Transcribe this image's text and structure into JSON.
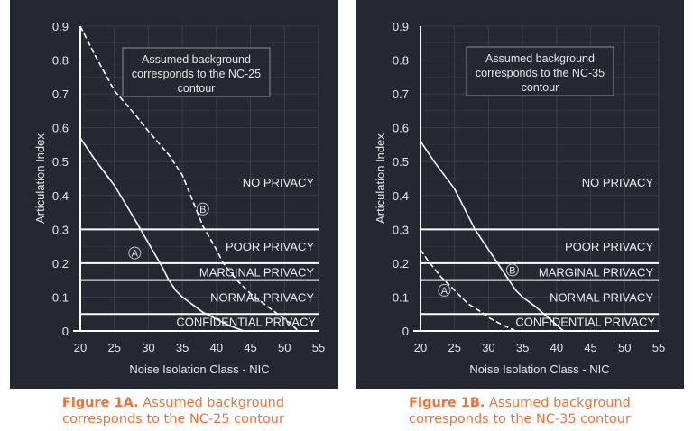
{
  "colors": {
    "background": "#242830",
    "lines": "#ffffff",
    "grid": "#3a3f49",
    "caption": "#e8743b"
  },
  "chart_data": [
    {
      "type": "line",
      "xlabel": "Noise Isolation Class - NIC",
      "ylabel": "Articulation Index",
      "xlim": [
        20,
        55
      ],
      "ylim": [
        0,
        0.9
      ],
      "xticks": [
        "20",
        "25",
        "30",
        "35",
        "40",
        "45",
        "50",
        "55"
      ],
      "yticks": [
        "0",
        "0.1",
        "0.2",
        "0.3",
        "0.4",
        "0.5",
        "0.6",
        "0.7",
        "0.8",
        "0.9"
      ],
      "grid": true,
      "annotation": [
        "Assumed background",
        "corresponds to the NC-25",
        "contour"
      ],
      "thresholds": [
        0.3,
        0.2,
        0.15,
        0.05,
        0
      ],
      "zones": [
        "NO PRIVACY",
        "POOR PRIVACY",
        "MARGINAL PRIVACY",
        "NORMAL PRIVACY",
        "CONFIDENTIAL PRIVACY"
      ],
      "series": [
        {
          "name": "A",
          "style": "solid",
          "x": [
            20,
            22,
            25,
            28,
            30,
            32,
            33,
            34,
            35,
            37,
            38,
            40,
            42,
            44
          ],
          "y": [
            0.57,
            0.51,
            0.43,
            0.33,
            0.26,
            0.19,
            0.15,
            0.12,
            0.1,
            0.07,
            0.055,
            0.035,
            0.015,
            0
          ]
        },
        {
          "name": "B",
          "style": "dashed",
          "x": [
            20,
            22,
            25,
            28,
            30,
            33,
            35,
            38,
            40,
            41,
            43,
            45,
            47,
            49,
            51,
            52
          ],
          "y": [
            0.9,
            0.82,
            0.71,
            0.64,
            0.59,
            0.52,
            0.46,
            0.31,
            0.24,
            0.2,
            0.15,
            0.11,
            0.08,
            0.05,
            0.02,
            0
          ]
        }
      ],
      "caption_bold": "Figure 1A.",
      "caption_line1": " Assumed background",
      "caption_line2": "corresponds to the NC-25 contour"
    },
    {
      "type": "line",
      "xlabel": "Noise Isolation Class - NIC",
      "ylabel": "Articulation Index",
      "xlim": [
        20,
        55
      ],
      "ylim": [
        0,
        0.9
      ],
      "xticks": [
        "20",
        "25",
        "30",
        "35",
        "40",
        "45",
        "50",
        "55"
      ],
      "yticks": [
        "0",
        "0.1",
        "0.2",
        "0.3",
        "0.4",
        "0.5",
        "0.6",
        "0.7",
        "0.8",
        "0.9"
      ],
      "grid": true,
      "annotation": [
        "Assumed background",
        "corresponds to the NC-35",
        "contour"
      ],
      "thresholds": [
        0.3,
        0.2,
        0.15,
        0.05,
        0
      ],
      "zones": [
        "NO PRIVACY",
        "POOR PRIVACY",
        "MARGINAL PRIVACY",
        "NORMAL PRIVACY",
        "CONFIDENTIAL PRIVACY"
      ],
      "series": [
        {
          "name": "A",
          "style": "dashed",
          "x": [
            20,
            21,
            23,
            25,
            27,
            29,
            30,
            32,
            34
          ],
          "y": [
            0.24,
            0.21,
            0.16,
            0.12,
            0.08,
            0.055,
            0.04,
            0.018,
            0
          ]
        },
        {
          "name": "B",
          "style": "solid",
          "x": [
            20,
            22,
            25,
            28,
            30,
            32,
            33,
            34,
            35,
            37,
            39,
            41
          ],
          "y": [
            0.56,
            0.5,
            0.42,
            0.3,
            0.24,
            0.18,
            0.15,
            0.12,
            0.1,
            0.07,
            0.035,
            0
          ]
        }
      ],
      "caption_bold": "Figure 1B.",
      "caption_line1": " Assumed background",
      "caption_line2": "corresponds to the NC-35 contour"
    }
  ]
}
